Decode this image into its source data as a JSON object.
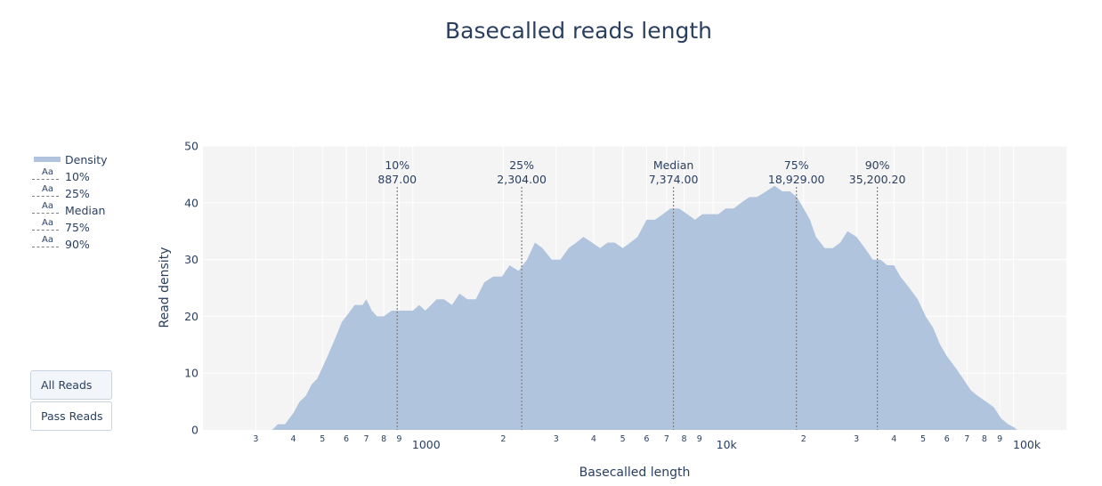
{
  "title": "Basecalled reads length",
  "legend": [
    {
      "label": "Density",
      "kind": "fill"
    },
    {
      "label": "10%",
      "kind": "line"
    },
    {
      "label": "25%",
      "kind": "line"
    },
    {
      "label": "Median",
      "kind": "line"
    },
    {
      "label": "75%",
      "kind": "line"
    },
    {
      "label": "90%",
      "kind": "line"
    }
  ],
  "legend_symbol_text": "Aa",
  "buttons": {
    "all_reads": "All Reads",
    "pass_reads": "Pass Reads"
  },
  "colors": {
    "density_fill": "#b0c4de",
    "plot_bg": "#f4f4f4",
    "marker_line": "#7f7f7f",
    "text": "#2a3f5f"
  },
  "chart_data": {
    "type": "area",
    "title": "Basecalled reads length",
    "xlabel": "Basecalled length",
    "ylabel": "Read density",
    "x_scale": "log",
    "xlim": [
      200,
      150000
    ],
    "ylim": [
      0,
      50
    ],
    "y_ticks": [
      0,
      10,
      20,
      30,
      40,
      50
    ],
    "x_ticks": [
      {
        "value": 300,
        "label": "3",
        "major": false
      },
      {
        "value": 400,
        "label": "4",
        "major": false
      },
      {
        "value": 500,
        "label": "5",
        "major": false
      },
      {
        "value": 600,
        "label": "6",
        "major": false
      },
      {
        "value": 700,
        "label": "7",
        "major": false
      },
      {
        "value": 800,
        "label": "8",
        "major": false
      },
      {
        "value": 900,
        "label": "9",
        "major": false
      },
      {
        "value": 1000,
        "label": "1000",
        "major": true
      },
      {
        "value": 2000,
        "label": "2",
        "major": false
      },
      {
        "value": 3000,
        "label": "3",
        "major": false
      },
      {
        "value": 4000,
        "label": "4",
        "major": false
      },
      {
        "value": 5000,
        "label": "5",
        "major": false
      },
      {
        "value": 6000,
        "label": "6",
        "major": false
      },
      {
        "value": 7000,
        "label": "7",
        "major": false
      },
      {
        "value": 8000,
        "label": "8",
        "major": false
      },
      {
        "value": 9000,
        "label": "9",
        "major": false
      },
      {
        "value": 10000,
        "label": "10k",
        "major": true
      },
      {
        "value": 20000,
        "label": "2",
        "major": false
      },
      {
        "value": 30000,
        "label": "3",
        "major": false
      },
      {
        "value": 40000,
        "label": "4",
        "major": false
      },
      {
        "value": 50000,
        "label": "5",
        "major": false
      },
      {
        "value": 60000,
        "label": "6",
        "major": false
      },
      {
        "value": 70000,
        "label": "7",
        "major": false
      },
      {
        "value": 80000,
        "label": "8",
        "major": false
      },
      {
        "value": 90000,
        "label": "9",
        "major": false
      },
      {
        "value": 100000,
        "label": "100k",
        "major": true
      }
    ],
    "series": [
      {
        "name": "Density",
        "x": [
          340,
          355,
          375,
          400,
          420,
          440,
          460,
          480,
          500,
          520,
          540,
          560,
          580,
          600,
          620,
          640,
          660,
          680,
          700,
          730,
          760,
          800,
          850,
          900,
          950,
          1000,
          1050,
          1100,
          1150,
          1200,
          1270,
          1350,
          1430,
          1520,
          1620,
          1730,
          1850,
          1980,
          2100,
          2250,
          2400,
          2550,
          2700,
          2900,
          3100,
          3300,
          3500,
          3700,
          3950,
          4200,
          4450,
          4700,
          5000,
          5300,
          5600,
          6000,
          6400,
          6800,
          7200,
          7700,
          8200,
          8700,
          9200,
          9800,
          10400,
          11000,
          11700,
          12400,
          13200,
          14000,
          15000,
          16000,
          17000,
          18000,
          19000,
          20000,
          21000,
          22000,
          23500,
          25000,
          26500,
          28000,
          30000,
          32000,
          34000,
          36000,
          38000,
          40000,
          42000,
          45000,
          48000,
          51000,
          54000,
          57000,
          60000,
          64000,
          68000,
          72000,
          76000,
          81000,
          86000,
          91000,
          96000,
          100000,
          103000
        ],
        "y": [
          0,
          1,
          1,
          3,
          5,
          6,
          8,
          9,
          11,
          13,
          15,
          17,
          19,
          20,
          21,
          22,
          22,
          22,
          23,
          21,
          20,
          20,
          21,
          21,
          21,
          21,
          22,
          21,
          22,
          23,
          23,
          22,
          24,
          23,
          23,
          26,
          27,
          27,
          29,
          28,
          30,
          33,
          32,
          30,
          30,
          32,
          33,
          34,
          33,
          32,
          33,
          33,
          32,
          33,
          34,
          37,
          37,
          38,
          39,
          39,
          38,
          37,
          38,
          38,
          38,
          39,
          39,
          40,
          41,
          41,
          42,
          43,
          42,
          42,
          41,
          39,
          37,
          34,
          32,
          32,
          33,
          35,
          34,
          32,
          30,
          30,
          29,
          29,
          27,
          25,
          23,
          20,
          18,
          15,
          13,
          11,
          9,
          7,
          6,
          5,
          4,
          2,
          1,
          0.5,
          0
        ]
      }
    ],
    "markers": [
      {
        "name": "10%",
        "value": 887.0,
        "label": "887.00"
      },
      {
        "name": "25%",
        "value": 2304.0,
        "label": "2,304.00"
      },
      {
        "name": "Median",
        "value": 7374.0,
        "label": "7,374.00"
      },
      {
        "name": "75%",
        "value": 18929.0,
        "label": "18,929.00"
      },
      {
        "name": "90%",
        "value": 35200.2,
        "label": "35,200.20"
      }
    ]
  }
}
